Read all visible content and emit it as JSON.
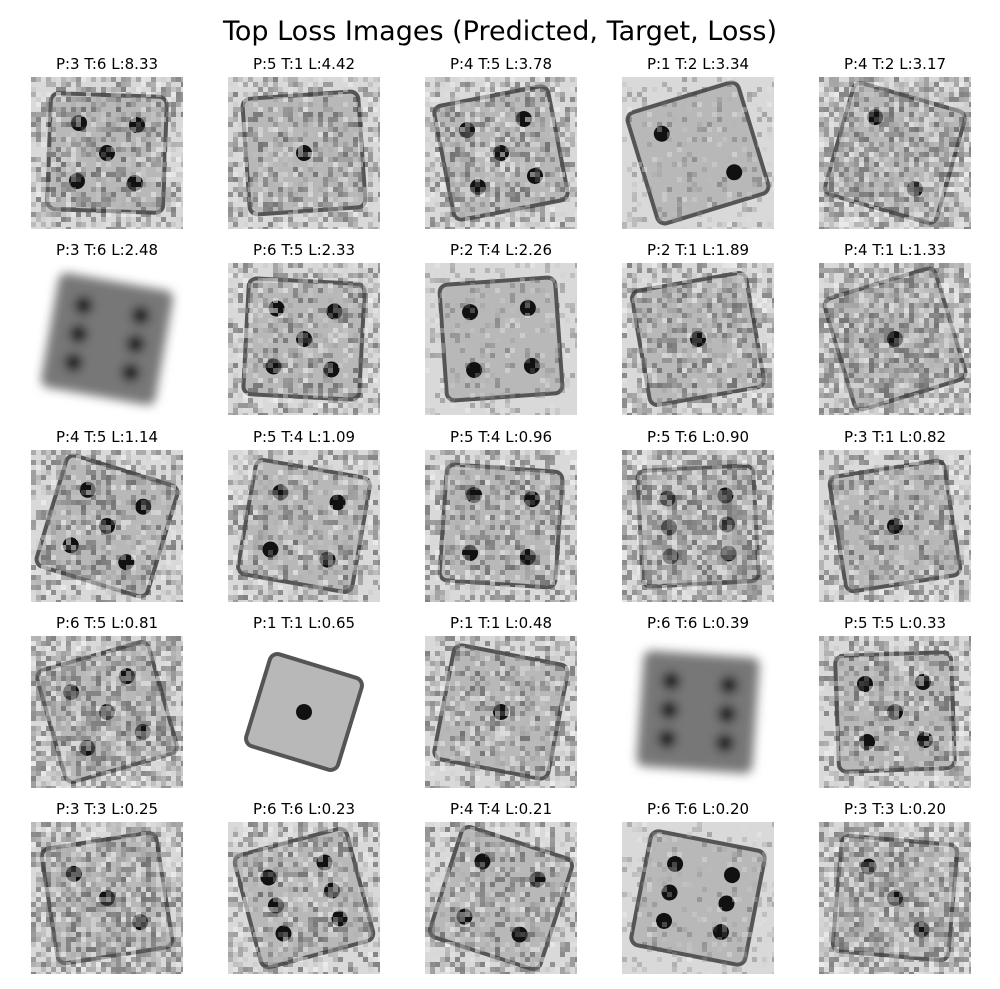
{
  "figure": {
    "title": "Top Loss Images (Predicted, Target, Loss)"
  },
  "cells": [
    {
      "label": "P:3 T:6 L:8.33",
      "predicted": 3,
      "target": 6,
      "loss": 8.33,
      "pips": 5,
      "style": "noisy"
    },
    {
      "label": "P:5 T:1 L:4.42",
      "predicted": 5,
      "target": 1,
      "loss": 4.42,
      "pips": 1,
      "style": "noisy"
    },
    {
      "label": "P:4 T:5 L:3.78",
      "predicted": 4,
      "target": 5,
      "loss": 3.78,
      "pips": 5,
      "style": "noisy"
    },
    {
      "label": "P:1 T:2 L:3.34",
      "predicted": 1,
      "target": 2,
      "loss": 3.34,
      "pips": 2,
      "style": "clean"
    },
    {
      "label": "P:4 T:2 L:3.17",
      "predicted": 4,
      "target": 2,
      "loss": 3.17,
      "pips": 2,
      "style": "very-noisy"
    },
    {
      "label": "P:3 T:6 L:2.48",
      "predicted": 3,
      "target": 6,
      "loss": 2.48,
      "pips": 6,
      "style": "blurred"
    },
    {
      "label": "P:6 T:5 L:2.33",
      "predicted": 6,
      "target": 5,
      "loss": 2.33,
      "pips": 5,
      "style": "noisy"
    },
    {
      "label": "P:2 T:4 L:2.26",
      "predicted": 2,
      "target": 4,
      "loss": 2.26,
      "pips": 4,
      "style": "clean"
    },
    {
      "label": "P:2 T:1 L:1.89",
      "predicted": 2,
      "target": 1,
      "loss": 1.89,
      "pips": 1,
      "style": "noisy"
    },
    {
      "label": "P:4 T:1 L:1.33",
      "predicted": 4,
      "target": 1,
      "loss": 1.33,
      "pips": 1,
      "style": "very-noisy"
    },
    {
      "label": "P:4 T:5 L:1.14",
      "predicted": 4,
      "target": 5,
      "loss": 1.14,
      "pips": 5,
      "style": "noisy"
    },
    {
      "label": "P:5 T:4 L:1.09",
      "predicted": 5,
      "target": 4,
      "loss": 1.09,
      "pips": 4,
      "style": "noisy"
    },
    {
      "label": "P:5 T:4 L:0.96",
      "predicted": 5,
      "target": 4,
      "loss": 0.96,
      "pips": 4,
      "style": "noisy"
    },
    {
      "label": "P:5 T:6 L:0.90",
      "predicted": 5,
      "target": 6,
      "loss": 0.9,
      "pips": 6,
      "style": "very-noisy"
    },
    {
      "label": "P:3 T:1 L:0.82",
      "predicted": 3,
      "target": 1,
      "loss": 0.82,
      "pips": 1,
      "style": "noisy"
    },
    {
      "label": "P:6 T:5 L:0.81",
      "predicted": 6,
      "target": 5,
      "loss": 0.81,
      "pips": 5,
      "style": "very-noisy"
    },
    {
      "label": "P:1 T:1 L:0.65",
      "predicted": 1,
      "target": 1,
      "loss": 0.65,
      "pips": 1,
      "style": "clean-solid"
    },
    {
      "label": "P:1 T:1 L:0.48",
      "predicted": 1,
      "target": 1,
      "loss": 0.48,
      "pips": 1,
      "style": "noisy"
    },
    {
      "label": "P:6 T:6 L:0.39",
      "predicted": 6,
      "target": 6,
      "loss": 0.39,
      "pips": 6,
      "style": "blurred"
    },
    {
      "label": "P:5 T:5 L:0.33",
      "predicted": 5,
      "target": 5,
      "loss": 0.33,
      "pips": 5,
      "style": "noisy"
    },
    {
      "label": "P:3 T:3 L:0.25",
      "predicted": 3,
      "target": 3,
      "loss": 0.25,
      "pips": 3,
      "style": "very-noisy"
    },
    {
      "label": "P:6 T:6 L:0.23",
      "predicted": 6,
      "target": 6,
      "loss": 0.23,
      "pips": 6,
      "style": "noisy"
    },
    {
      "label": "P:4 T:4 L:0.21",
      "predicted": 4,
      "target": 4,
      "loss": 0.21,
      "pips": 4,
      "style": "noisy"
    },
    {
      "label": "P:6 T:6 L:0.20",
      "predicted": 6,
      "target": 6,
      "loss": 0.2,
      "pips": 6,
      "style": "clean"
    },
    {
      "label": "P:3 T:3 L:0.20",
      "predicted": 3,
      "target": 3,
      "loss": 0.2,
      "pips": 3,
      "style": "very-noisy"
    }
  ],
  "colors": {
    "background": "#ffffff",
    "die_face": "#b8b8b8",
    "die_edge": "#555555",
    "pip": "#111111",
    "noise_light": "#e6e6e6",
    "noise_dark": "#5a5a5a"
  }
}
